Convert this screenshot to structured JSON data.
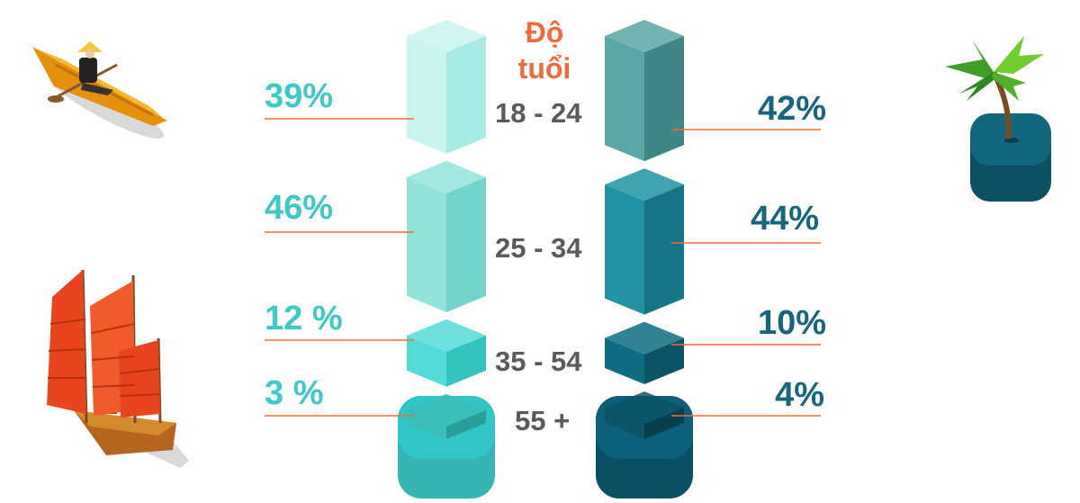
{
  "chart_data": {
    "type": "bar",
    "title": "Độ tuổi",
    "title_lines": [
      "Độ",
      "tuổi"
    ],
    "categories": [
      "18 - 24",
      "25 - 34",
      "35 - 54",
      "55 +"
    ],
    "series": [
      {
        "values": [
          39,
          46,
          12,
          3
        ],
        "labels": [
          "39%",
          "46%",
          "12 %",
          "3 %"
        ],
        "color": "#3ec9c9"
      },
      {
        "values": [
          42,
          44,
          10,
          4
        ],
        "labels": [
          "42%",
          "44%",
          "10%",
          "4%"
        ],
        "color": "#16667e"
      }
    ],
    "leader_line_color": "#f26a3c"
  },
  "icons": [
    "rowboat-icon",
    "junk-ship-icon",
    "palm-tree-icon"
  ]
}
